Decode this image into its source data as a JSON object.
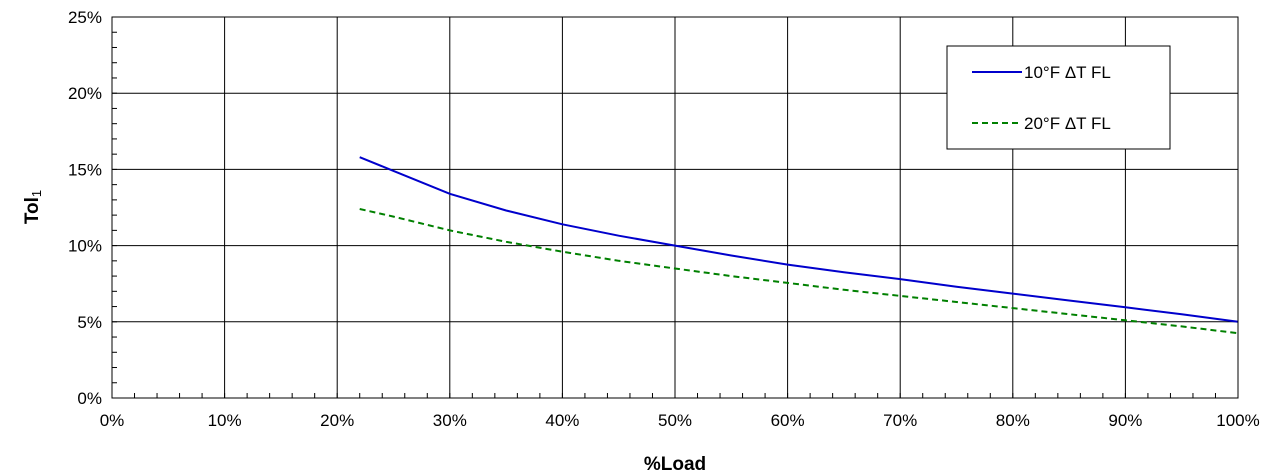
{
  "chart_data": {
    "type": "line",
    "title": "",
    "xlabel": "%Load",
    "ylabel_main": "Tol",
    "ylabel_subscript": "1",
    "xlim": [
      0,
      100
    ],
    "ylim": [
      0,
      25
    ],
    "x_ticks": [
      0,
      10,
      20,
      30,
      40,
      50,
      60,
      70,
      80,
      90,
      100
    ],
    "y_ticks": [
      0,
      5,
      10,
      15,
      20,
      25
    ],
    "x_tick_labels": [
      "0%",
      "10%",
      "20%",
      "30%",
      "40%",
      "50%",
      "60%",
      "70%",
      "80%",
      "90%",
      "100%"
    ],
    "y_tick_labels": [
      "0%",
      "5%",
      "10%",
      "15%",
      "20%",
      "25%"
    ],
    "grid": true,
    "legend_position": "top-right",
    "series": [
      {
        "name": "10°F ΔT FL",
        "color": "#0000cc",
        "dash": "solid",
        "x": [
          22,
          25,
          30,
          35,
          40,
          45,
          50,
          55,
          60,
          65,
          70,
          75,
          80,
          85,
          90,
          95,
          100
        ],
        "y": [
          15.8,
          14.9,
          13.4,
          12.3,
          11.4,
          10.65,
          10.0,
          9.35,
          8.75,
          8.25,
          7.8,
          7.3,
          6.85,
          6.4,
          5.95,
          5.5,
          5.0
        ]
      },
      {
        "name": "20°F ΔT FL",
        "color": "#008000",
        "dash": "dashed",
        "x": [
          22,
          25,
          30,
          35,
          40,
          45,
          50,
          55,
          60,
          65,
          70,
          75,
          80,
          85,
          90,
          95,
          100
        ],
        "y": [
          12.4,
          11.9,
          11.0,
          10.25,
          9.6,
          9.0,
          8.5,
          8.0,
          7.55,
          7.1,
          6.7,
          6.3,
          5.9,
          5.5,
          5.1,
          4.7,
          4.25
        ]
      }
    ]
  }
}
